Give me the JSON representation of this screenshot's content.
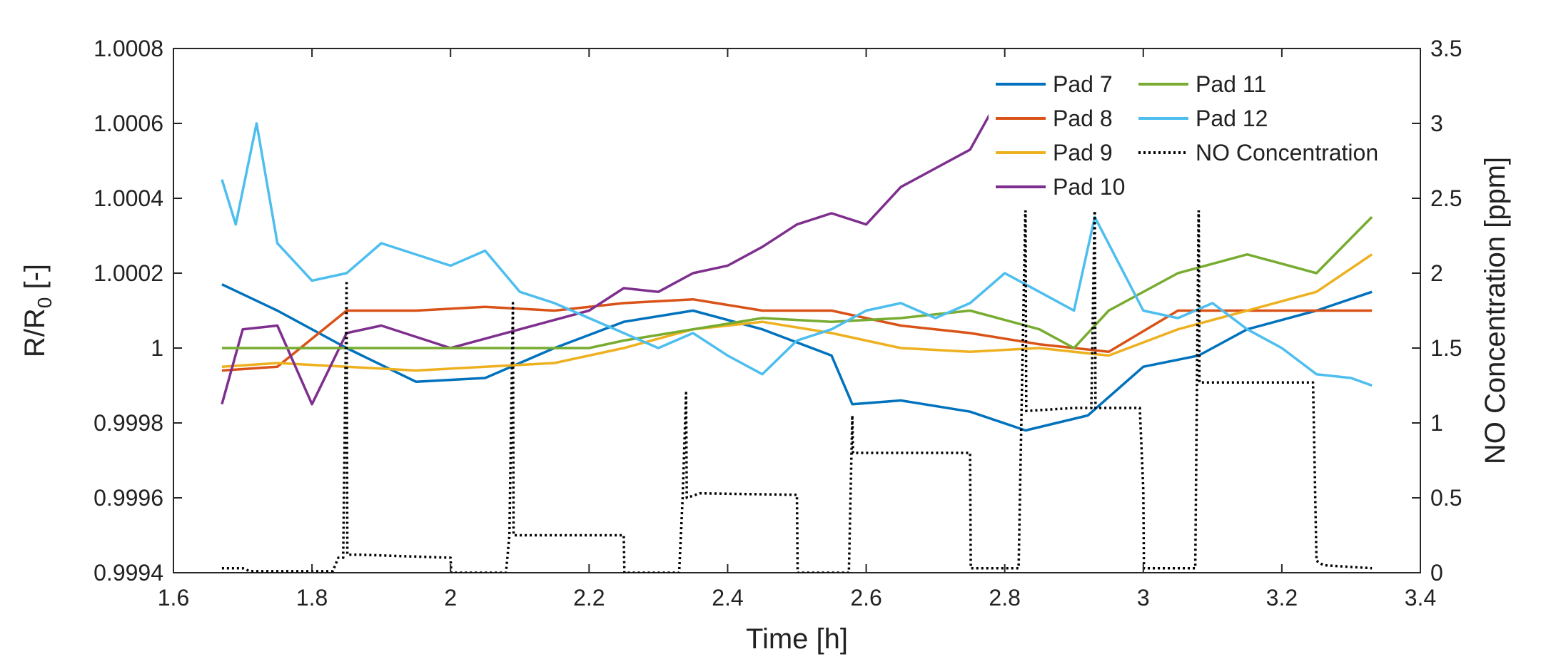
{
  "chart_data": {
    "type": "line",
    "title": "",
    "xlabel": "Time [h]",
    "ylabel": "R/R_0 [-]",
    "ylabel_main": "R/R",
    "ylabel_sub": "0",
    "ylabel_suffix": " [-]",
    "y2label": "NO Concentration [ppm]",
    "xlim": [
      1.6,
      3.4
    ],
    "ylim": [
      0.9994,
      1.0008
    ],
    "y2lim": [
      0,
      3.5
    ],
    "xticks": [
      "1.6",
      "1.8",
      "2",
      "2.2",
      "2.4",
      "2.6",
      "2.8",
      "3",
      "3.2",
      "3.4"
    ],
    "yticks": [
      "0.9994",
      "0.9996",
      "0.9998",
      "1",
      "1.0002",
      "1.0004",
      "1.0006",
      "1.0008"
    ],
    "y2ticks": [
      "0",
      "0.5",
      "1",
      "1.5",
      "2",
      "2.5",
      "3",
      "3.5"
    ],
    "grid": false,
    "legend_position": "top-right",
    "legend": [
      {
        "label": "Pad 7",
        "color": "#0072BD",
        "style": "solid"
      },
      {
        "label": "Pad 8",
        "color": "#D95319",
        "style": "solid"
      },
      {
        "label": "Pad 9",
        "color": "#EDB120",
        "style": "solid"
      },
      {
        "label": "Pad 10",
        "color": "#7E2F8E",
        "style": "solid"
      },
      {
        "label": "Pad 11",
        "color": "#77AC30",
        "style": "solid"
      },
      {
        "label": "Pad 12",
        "color": "#4DBEEE",
        "style": "solid"
      },
      {
        "label": "NO Concentration",
        "color": "#000000",
        "style": "dotted"
      }
    ],
    "series": [
      {
        "name": "Pad 7",
        "axis": "left",
        "color": "#0072BD",
        "x": [
          1.67,
          1.75,
          1.85,
          1.95,
          2.05,
          2.15,
          2.25,
          2.35,
          2.45,
          2.55,
          2.58,
          2.65,
          2.75,
          2.83,
          2.92,
          3.0,
          3.08,
          3.15,
          3.25,
          3.33
        ],
        "y": [
          1.00017,
          1.0001,
          1.0,
          0.99991,
          0.99992,
          1.0,
          1.00007,
          1.0001,
          1.00005,
          0.99998,
          0.99985,
          0.99986,
          0.99983,
          0.99978,
          0.99982,
          0.99995,
          0.99998,
          1.00005,
          1.0001,
          1.00015
        ]
      },
      {
        "name": "Pad 8",
        "axis": "left",
        "color": "#D95319",
        "x": [
          1.67,
          1.75,
          1.85,
          1.95,
          2.05,
          2.15,
          2.25,
          2.35,
          2.45,
          2.55,
          2.65,
          2.75,
          2.85,
          2.95,
          3.05,
          3.15,
          3.25,
          3.33
        ],
        "y": [
          0.99994,
          0.99995,
          1.0001,
          1.0001,
          1.00011,
          1.0001,
          1.00012,
          1.00013,
          1.0001,
          1.0001,
          1.00006,
          1.00004,
          1.00001,
          0.99999,
          1.0001,
          1.0001,
          1.0001,
          1.0001
        ]
      },
      {
        "name": "Pad 9",
        "axis": "left",
        "color": "#EDB120",
        "x": [
          1.67,
          1.75,
          1.85,
          1.95,
          2.05,
          2.15,
          2.25,
          2.35,
          2.45,
          2.55,
          2.65,
          2.75,
          2.85,
          2.95,
          3.05,
          3.15,
          3.25,
          3.33
        ],
        "y": [
          0.99995,
          0.99996,
          0.99995,
          0.99994,
          0.99995,
          0.99996,
          1.0,
          1.00005,
          1.00007,
          1.00004,
          1.0,
          0.99999,
          1.0,
          0.99998,
          1.00005,
          1.0001,
          1.00015,
          1.00025
        ]
      },
      {
        "name": "Pad 10",
        "axis": "left",
        "color": "#7E2F8E",
        "x": [
          1.67,
          1.7,
          1.75,
          1.8,
          1.85,
          1.9,
          2.0,
          2.1,
          2.2,
          2.25,
          2.3,
          2.35,
          2.4,
          2.45,
          2.5,
          2.55,
          2.6,
          2.65,
          2.7,
          2.75,
          2.78,
          2.85,
          2.9
        ],
        "y": [
          0.99985,
          1.00005,
          1.00006,
          0.99985,
          1.00004,
          1.00006,
          1.0,
          1.00005,
          1.0001,
          1.00016,
          1.00015,
          1.0002,
          1.00022,
          1.00027,
          1.00033,
          1.00036,
          1.00033,
          1.00043,
          1.00048,
          1.00053,
          1.00063,
          1.0005,
          1.00038
        ]
      },
      {
        "name": "Pad 11",
        "axis": "left",
        "color": "#77AC30",
        "x": [
          1.67,
          1.8,
          1.9,
          2.0,
          2.1,
          2.2,
          2.25,
          2.35,
          2.45,
          2.55,
          2.65,
          2.75,
          2.85,
          2.9,
          2.95,
          3.05,
          3.15,
          3.25,
          3.33
        ],
        "y": [
          1.0,
          1.0,
          1.0,
          1.0,
          1.0,
          1.0,
          1.00002,
          1.00005,
          1.00008,
          1.00007,
          1.00008,
          1.0001,
          1.00005,
          1.0,
          1.0001,
          1.0002,
          1.00025,
          1.0002,
          1.00035
        ]
      },
      {
        "name": "Pad 12",
        "axis": "left",
        "color": "#4DBEEE",
        "x": [
          1.67,
          1.69,
          1.72,
          1.75,
          1.8,
          1.85,
          1.9,
          2.0,
          2.05,
          2.1,
          2.15,
          2.2,
          2.25,
          2.3,
          2.35,
          2.4,
          2.45,
          2.5,
          2.55,
          2.6,
          2.65,
          2.7,
          2.75,
          2.8,
          2.85,
          2.9,
          2.93,
          3.0,
          3.05,
          3.1,
          3.15,
          3.2,
          3.25,
          3.3,
          3.33
        ],
        "y": [
          1.00045,
          1.00033,
          1.0006,
          1.00028,
          1.00018,
          1.0002,
          1.00028,
          1.00022,
          1.00026,
          1.00015,
          1.00012,
          1.00008,
          1.00004,
          1.0,
          1.00004,
          0.99998,
          0.99993,
          1.00002,
          1.00005,
          1.0001,
          1.00012,
          1.00008,
          1.00012,
          1.0002,
          1.00015,
          1.0001,
          1.00035,
          1.0001,
          1.00008,
          1.00012,
          1.00005,
          1.0,
          0.99993,
          0.99992,
          0.9999
        ]
      },
      {
        "name": "NO Concentration",
        "axis": "right",
        "color": "#000000",
        "x": [
          1.67,
          1.7,
          1.71,
          1.83,
          1.838,
          1.845,
          1.85,
          1.851,
          1.87,
          2.0,
          2.001,
          2.08,
          2.085,
          2.09,
          2.091,
          2.1,
          2.25,
          2.251,
          2.33,
          2.335,
          2.34,
          2.341,
          2.36,
          2.5,
          2.501,
          2.575,
          2.58,
          2.581,
          2.6,
          2.75,
          2.751,
          2.82,
          2.83,
          2.831,
          2.9,
          2.925,
          2.93,
          2.931,
          2.95,
          2.995,
          3.0,
          3.001,
          3.02,
          3.075,
          3.08,
          3.081,
          3.1,
          3.245,
          3.25,
          3.26,
          3.33
        ],
        "y": [
          0.03,
          0.03,
          0.01,
          0.01,
          0.1,
          0.1,
          1.95,
          0.12,
          0.12,
          0.1,
          0.0,
          0.0,
          0.25,
          1.8,
          0.25,
          0.25,
          0.25,
          0.0,
          0.0,
          0.5,
          1.2,
          0.5,
          0.53,
          0.52,
          0.0,
          0.0,
          1.05,
          0.8,
          0.8,
          0.8,
          0.03,
          0.03,
          2.5,
          1.08,
          1.1,
          1.1,
          2.5,
          1.1,
          1.1,
          1.1,
          0.55,
          0.03,
          0.03,
          0.03,
          2.5,
          1.27,
          1.27,
          1.27,
          0.08,
          0.05,
          0.03
        ]
      }
    ]
  }
}
